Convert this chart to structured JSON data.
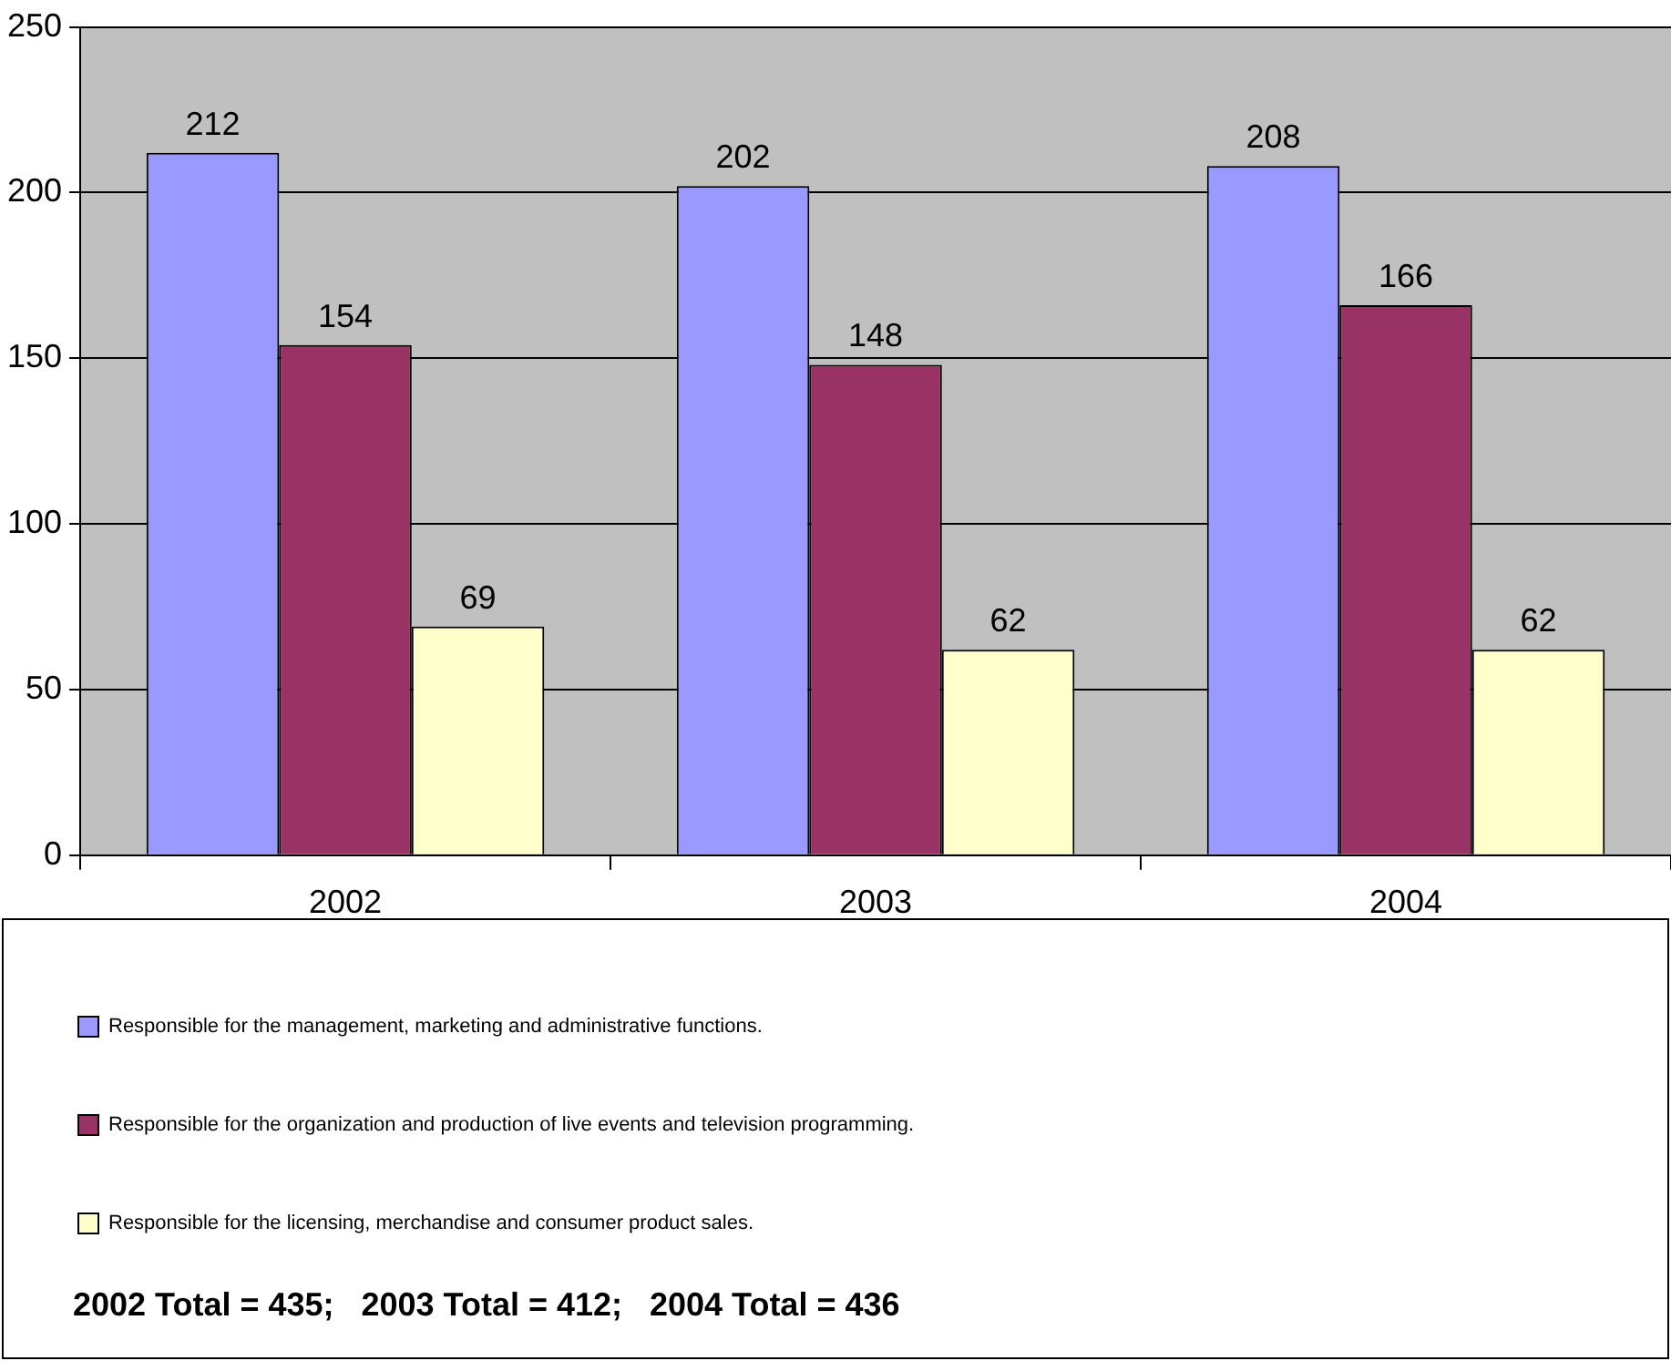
{
  "chart_data": {
    "type": "bar",
    "categories": [
      "2002",
      "2003",
      "2004"
    ],
    "series": [
      {
        "name": "Responsible for the management, marketing and administrative functions.",
        "color": "#9999ff",
        "values": [
          212,
          202,
          208
        ]
      },
      {
        "name": "Responsible for the organization and production of live events and television programming.",
        "color": "#993366",
        "values": [
          154,
          148,
          166
        ]
      },
      {
        "name": "Responsible for the licensing, merchandise and consumer product sales.",
        "color": "#ffffcc",
        "values": [
          69,
          62,
          62
        ]
      }
    ],
    "ylim": [
      0,
      250
    ],
    "yticks": [
      0,
      50,
      100,
      150,
      200,
      250
    ],
    "grid": "y",
    "legend": "bottom",
    "data_labels": true,
    "annotations": [
      "2002 Total = 435;   2003 Total = 412;   2004 Total = 436"
    ]
  }
}
